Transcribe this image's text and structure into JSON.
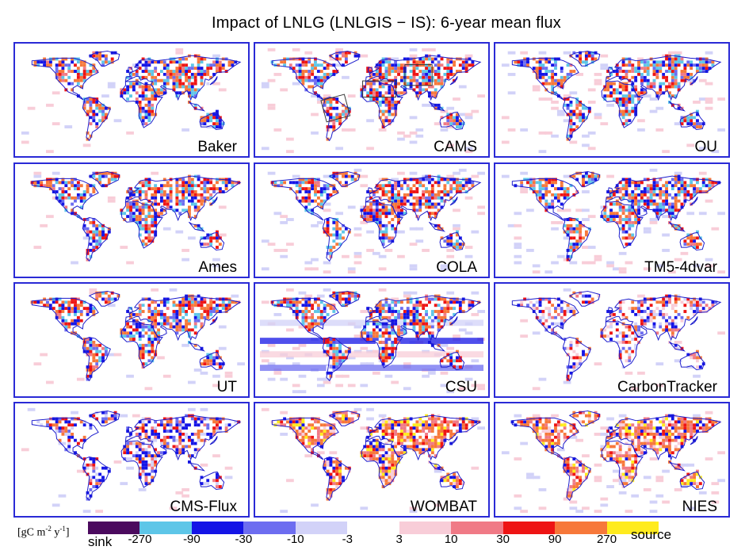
{
  "title": "Impact of LNLG (LNLGIS − IS):  6-year mean flux",
  "panels": [
    {
      "label": "Baker",
      "land": "mixed",
      "ocean": "sparse",
      "boxes": false
    },
    {
      "label": "CAMS",
      "land": "mixed",
      "ocean": "light",
      "boxes": true
    },
    {
      "label": "OU",
      "land": "mixed",
      "ocean": "light",
      "boxes": false
    },
    {
      "label": "Ames",
      "land": "mixed",
      "ocean": "sparse",
      "boxes": false
    },
    {
      "label": "COLA",
      "land": "mixed",
      "ocean": "light",
      "boxes": false
    },
    {
      "label": "TM5-4dvar",
      "land": "mixed",
      "ocean": "light",
      "boxes": false
    },
    {
      "label": "UT",
      "land": "mixed",
      "ocean": "sparse",
      "boxes": false
    },
    {
      "label": "CSU",
      "land": "mixed",
      "ocean": "banded",
      "boxes": false
    },
    {
      "label": "CarbonTracker",
      "land": "speckled",
      "ocean": "sparse",
      "boxes": false
    },
    {
      "label": "CMS-Flux",
      "land": "north-sink",
      "ocean": "sparse",
      "boxes": false
    },
    {
      "label": "WOMBAT",
      "land": "source",
      "ocean": "sparse",
      "boxes": false
    },
    {
      "label": "NIES",
      "land": "source",
      "ocean": "light",
      "boxes": false
    }
  ],
  "legend": {
    "units_main": "[gC m",
    "units_exp1": "-2",
    "units_mid": " y",
    "units_exp2": "-1",
    "units_end": "]",
    "sink_label": "sink",
    "source_label": "source",
    "ticks": [
      "-270",
      "-90",
      "-30",
      "-10",
      "-3",
      "3",
      "10",
      "30",
      "90",
      "270"
    ],
    "colors": [
      "#4b0a5e",
      "#5ec6e8",
      "#1414e6",
      "#6d6df0",
      "#d2d2f8",
      "#ffffff",
      "#f8cdd8",
      "#f07a86",
      "#ee1414",
      "#f7783a",
      "#ffeb1e"
    ]
  },
  "colors": {
    "frame": "#2a2ad6",
    "coast": "#1a1acc",
    "box": "#333333"
  }
}
